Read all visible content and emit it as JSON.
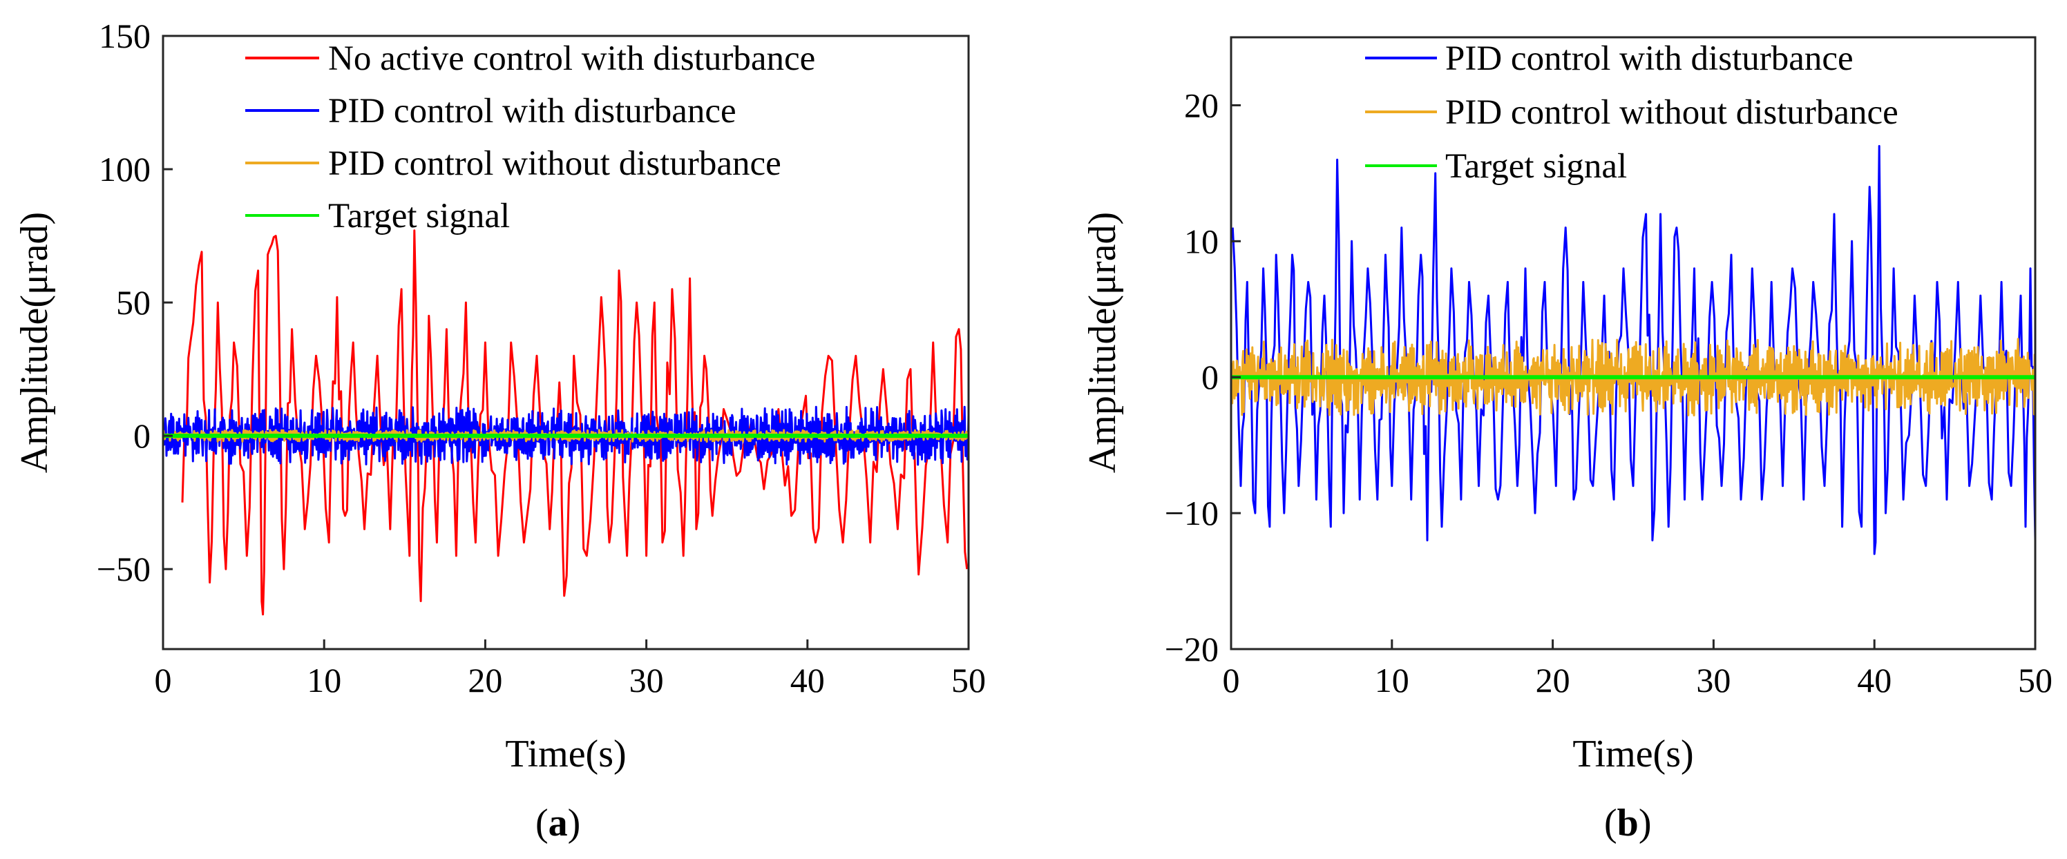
{
  "chart_data": [
    {
      "type": "line",
      "panel_label": "a",
      "xlabel": "Time(s)",
      "ylabel": "Amplitude(μrad)",
      "xlim": [
        0,
        50
      ],
      "ylim": [
        -80,
        150
      ],
      "xticks": [
        0,
        10,
        20,
        30,
        40,
        50
      ],
      "yticks": [
        -50,
        0,
        50,
        100,
        150
      ],
      "ytick_labels": [
        "−50",
        "0",
        "50",
        "100",
        "150"
      ],
      "legend_position": "top-right",
      "series": [
        {
          "name": "No active control with disturbance",
          "color": "#ff0000",
          "peaks": [
            [
              1.2,
              -25
            ],
            [
              1.7,
              35
            ],
            [
              2.4,
              69
            ],
            [
              2.9,
              -55
            ],
            [
              3.4,
              50
            ],
            [
              3.9,
              -50
            ],
            [
              4.4,
              35
            ],
            [
              5.2,
              -45
            ],
            [
              5.9,
              62
            ],
            [
              6.2,
              -67
            ],
            [
              6.5,
              68
            ],
            [
              7.0,
              75
            ],
            [
              7.5,
              -50
            ],
            [
              8.0,
              40
            ],
            [
              8.8,
              -35
            ],
            [
              9.5,
              30
            ],
            [
              10.3,
              -40
            ],
            [
              10.8,
              52
            ],
            [
              11.3,
              -30
            ],
            [
              11.8,
              35
            ],
            [
              12.5,
              -35
            ],
            [
              13.3,
              30
            ],
            [
              14.1,
              -35
            ],
            [
              14.8,
              55
            ],
            [
              15.3,
              -45
            ],
            [
              15.6,
              77
            ],
            [
              16.0,
              -62
            ],
            [
              16.5,
              45
            ],
            [
              17.0,
              -40
            ],
            [
              17.6,
              40
            ],
            [
              18.2,
              -45
            ],
            [
              18.8,
              50
            ],
            [
              19.4,
              -40
            ],
            [
              20.0,
              35
            ],
            [
              20.8,
              -45
            ],
            [
              21.6,
              35
            ],
            [
              22.4,
              -40
            ],
            [
              23.2,
              30
            ],
            [
              24.0,
              -35
            ],
            [
              24.6,
              20
            ],
            [
              24.9,
              -60
            ],
            [
              25.5,
              30
            ],
            [
              26.3,
              -45
            ],
            [
              27.2,
              52
            ],
            [
              27.7,
              -40
            ],
            [
              28.3,
              62
            ],
            [
              28.8,
              -45
            ],
            [
              29.4,
              50
            ],
            [
              30.0,
              -45
            ],
            [
              30.5,
              50
            ],
            [
              31.0,
              -40
            ],
            [
              31.6,
              55
            ],
            [
              32.3,
              -45
            ],
            [
              32.7,
              59
            ],
            [
              33.1,
              -35
            ],
            [
              33.6,
              30
            ],
            [
              34.1,
              -30
            ],
            [
              34.8,
              10
            ],
            [
              35.6,
              -15
            ],
            [
              36.5,
              5
            ],
            [
              37.3,
              -20
            ],
            [
              38.2,
              10
            ],
            [
              39.0,
              -30
            ],
            [
              39.9,
              15
            ],
            [
              40.5,
              -40
            ],
            [
              41.3,
              30
            ],
            [
              42.2,
              -40
            ],
            [
              43.0,
              30
            ],
            [
              43.9,
              -40
            ],
            [
              44.7,
              25
            ],
            [
              45.6,
              -35
            ],
            [
              46.4,
              25
            ],
            [
              46.9,
              -52
            ],
            [
              47.8,
              35
            ],
            [
              48.7,
              -40
            ],
            [
              49.4,
              40
            ],
            [
              49.9,
              -50
            ]
          ]
        },
        {
          "name": "PID control with disturbance",
          "color": "#0000ff",
          "amplitude": 10
        },
        {
          "name": "PID control without disturbance",
          "color": "#eeaa22",
          "amplitude": 2
        },
        {
          "name": "Target signal",
          "color": "#00ee00",
          "constant": 0
        }
      ]
    },
    {
      "type": "line",
      "panel_label": "b",
      "xlabel": "Time(s)",
      "ylabel": "Amplitude(μrad)",
      "xlim": [
        0,
        50
      ],
      "ylim": [
        -20,
        25
      ],
      "xticks": [
        0,
        10,
        20,
        30,
        40,
        50
      ],
      "yticks": [
        -20,
        -10,
        0,
        10,
        20
      ],
      "ytick_labels": [
        "−20",
        "−10",
        "0",
        "10",
        "20"
      ],
      "legend_position": "top-right",
      "series": [
        {
          "name": "PID control with disturbance",
          "color": "#0000ff",
          "peaks": [
            [
              0.1,
              11
            ],
            [
              0.6,
              -8
            ],
            [
              1.0,
              7
            ],
            [
              1.5,
              -10
            ],
            [
              2.0,
              8
            ],
            [
              2.4,
              -11
            ],
            [
              2.8,
              9
            ],
            [
              3.3,
              -10
            ],
            [
              3.8,
              9
            ],
            [
              4.2,
              -8
            ],
            [
              4.8,
              7
            ],
            [
              5.3,
              -9
            ],
            [
              5.8,
              6
            ],
            [
              6.2,
              -11
            ],
            [
              6.6,
              16
            ],
            [
              7.0,
              -10
            ],
            [
              7.5,
              10
            ],
            [
              8.0,
              -9
            ],
            [
              8.5,
              8
            ],
            [
              9.1,
              -9
            ],
            [
              9.6,
              9
            ],
            [
              10.0,
              -8
            ],
            [
              10.6,
              11
            ],
            [
              11.2,
              -9
            ],
            [
              11.8,
              9
            ],
            [
              12.2,
              -12
            ],
            [
              12.7,
              15
            ],
            [
              13.1,
              -11
            ],
            [
              13.7,
              8
            ],
            [
              14.3,
              -9
            ],
            [
              14.8,
              7
            ],
            [
              15.4,
              -8
            ],
            [
              16.0,
              6
            ],
            [
              16.6,
              -9
            ],
            [
              17.2,
              7
            ],
            [
              17.8,
              -8
            ],
            [
              18.3,
              8
            ],
            [
              18.9,
              -10
            ],
            [
              19.5,
              7
            ],
            [
              20.2,
              -8
            ],
            [
              20.8,
              11
            ],
            [
              21.3,
              -9
            ],
            [
              21.9,
              7
            ],
            [
              22.5,
              -8
            ],
            [
              23.2,
              6
            ],
            [
              23.8,
              -9
            ],
            [
              24.4,
              8
            ],
            [
              25.0,
              -8
            ],
            [
              25.8,
              12
            ],
            [
              26.2,
              -12
            ],
            [
              26.7,
              12
            ],
            [
              27.2,
              -11
            ],
            [
              27.7,
              11
            ],
            [
              28.2,
              -9
            ],
            [
              28.8,
              8
            ],
            [
              29.3,
              -9
            ],
            [
              29.9,
              7
            ],
            [
              30.5,
              -8
            ],
            [
              31.1,
              9
            ],
            [
              31.7,
              -9
            ],
            [
              32.4,
              8
            ],
            [
              33.0,
              -9
            ],
            [
              33.6,
              7
            ],
            [
              34.3,
              -8
            ],
            [
              34.9,
              8
            ],
            [
              35.6,
              -9
            ],
            [
              36.2,
              7
            ],
            [
              36.9,
              -8
            ],
            [
              37.5,
              12
            ],
            [
              38.0,
              -11
            ],
            [
              38.6,
              10
            ],
            [
              39.2,
              -11
            ],
            [
              39.7,
              14
            ],
            [
              40.0,
              -13
            ],
            [
              40.3,
              17
            ],
            [
              40.7,
              -10
            ],
            [
              41.2,
              8
            ],
            [
              41.8,
              -9
            ],
            [
              42.5,
              6
            ],
            [
              43.2,
              -8
            ],
            [
              43.9,
              7
            ],
            [
              44.5,
              -9
            ],
            [
              45.2,
              7
            ],
            [
              45.9,
              -8
            ],
            [
              46.6,
              6
            ],
            [
              47.3,
              -9
            ],
            [
              47.9,
              7
            ],
            [
              48.5,
              -8
            ],
            [
              49.1,
              6
            ],
            [
              49.4,
              -11
            ],
            [
              49.7,
              8
            ],
            [
              50.0,
              -12
            ]
          ]
        },
        {
          "name": "PID control without disturbance",
          "color": "#eeaa22",
          "amplitude": 2.6
        },
        {
          "name": "Target signal",
          "color": "#00ee00",
          "constant": 0
        }
      ]
    }
  ]
}
